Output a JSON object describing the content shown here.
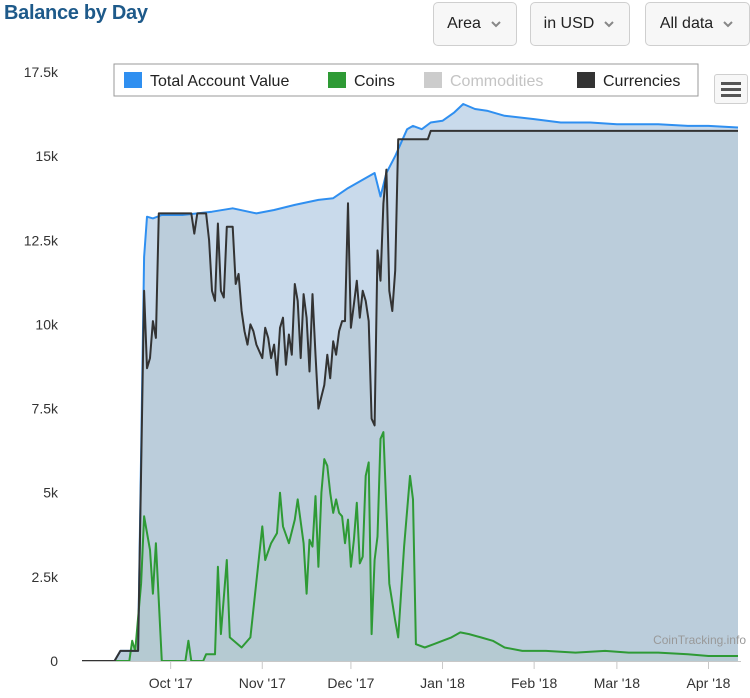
{
  "title": "Balance by Day",
  "controls": {
    "chart_type": "Area",
    "currency": "in USD",
    "range": "All data"
  },
  "credit": "CoinTracking.info",
  "colors": {
    "total": "#2f8ff0",
    "total_fill": "#c9daeb",
    "coins": "#2e9a35",
    "coins_fill": "#a9c8b8",
    "commodities": "#c8c8c8",
    "currencies": "#333333",
    "currencies_fill": "#b5c8d6"
  },
  "chart_data": {
    "type": "area",
    "title": "Balance by Day",
    "xlabel": "",
    "ylabel": "",
    "x_ticks": [
      "Oct '17",
      "Nov '17",
      "Dec '17",
      "Jan '18",
      "Feb '18",
      "Mar '18",
      "Apr '18"
    ],
    "y_ticks": [
      "0",
      "2.5k",
      "5k",
      "7.5k",
      "10k",
      "12.5k",
      "15k",
      "17.5k"
    ],
    "ylim": [
      0,
      17500
    ],
    "xlim": [
      "2017-09-01",
      "2018-04-12"
    ],
    "grid": false,
    "legend_position": "top",
    "series": [
      {
        "name": "Total Account Value",
        "visible": true,
        "points": [
          [
            "2017-09-01",
            0
          ],
          [
            "2017-09-12",
            0
          ],
          [
            "2017-09-14",
            300
          ],
          [
            "2017-09-20",
            300
          ],
          [
            "2017-09-22",
            12000
          ],
          [
            "2017-09-23",
            13200
          ],
          [
            "2017-09-25",
            13150
          ],
          [
            "2017-09-28",
            13250
          ],
          [
            "2017-10-05",
            13250
          ],
          [
            "2017-10-15",
            13350
          ],
          [
            "2017-10-22",
            13450
          ],
          [
            "2017-10-30",
            13300
          ],
          [
            "2017-11-05",
            13400
          ],
          [
            "2017-11-12",
            13550
          ],
          [
            "2017-11-20",
            13700
          ],
          [
            "2017-11-25",
            13750
          ],
          [
            "2017-11-30",
            14050
          ],
          [
            "2017-12-05",
            14300
          ],
          [
            "2017-12-09",
            14500
          ],
          [
            "2017-12-11",
            13800
          ],
          [
            "2017-12-13",
            14500
          ],
          [
            "2017-12-16",
            15000
          ],
          [
            "2017-12-20",
            15800
          ],
          [
            "2017-12-22",
            15900
          ],
          [
            "2017-12-25",
            15800
          ],
          [
            "2017-12-28",
            16000
          ],
          [
            "2018-01-01",
            16050
          ],
          [
            "2018-01-05",
            16300
          ],
          [
            "2018-01-08",
            16550
          ],
          [
            "2018-01-12",
            16400
          ],
          [
            "2018-01-16",
            16350
          ],
          [
            "2018-01-22",
            16200
          ],
          [
            "2018-02-01",
            16100
          ],
          [
            "2018-02-10",
            16000
          ],
          [
            "2018-02-20",
            16000
          ],
          [
            "2018-03-01",
            15950
          ],
          [
            "2018-03-15",
            15950
          ],
          [
            "2018-03-25",
            15900
          ],
          [
            "2018-04-01",
            15900
          ],
          [
            "2018-04-11",
            15850
          ]
        ]
      },
      {
        "name": "Coins",
        "visible": true,
        "points": [
          [
            "2017-09-01",
            0
          ],
          [
            "2017-09-17",
            0
          ],
          [
            "2017-09-18",
            600
          ],
          [
            "2017-09-19",
            300
          ],
          [
            "2017-09-21",
            2300
          ],
          [
            "2017-09-22",
            4300
          ],
          [
            "2017-09-24",
            3300
          ],
          [
            "2017-09-25",
            2000
          ],
          [
            "2017-09-26",
            3500
          ],
          [
            "2017-09-28",
            0
          ],
          [
            "2017-10-06",
            0
          ],
          [
            "2017-10-07",
            600
          ],
          [
            "2017-10-08",
            0
          ],
          [
            "2017-10-12",
            0
          ],
          [
            "2017-10-13",
            200
          ],
          [
            "2017-10-16",
            200
          ],
          [
            "2017-10-17",
            2800
          ],
          [
            "2017-10-18",
            800
          ],
          [
            "2017-10-20",
            3000
          ],
          [
            "2017-10-21",
            700
          ],
          [
            "2017-10-25",
            400
          ],
          [
            "2017-10-28",
            700
          ],
          [
            "2017-11-01",
            4000
          ],
          [
            "2017-11-02",
            3000
          ],
          [
            "2017-11-04",
            3500
          ],
          [
            "2017-11-06",
            3800
          ],
          [
            "2017-11-07",
            5000
          ],
          [
            "2017-11-08",
            4000
          ],
          [
            "2017-11-10",
            3500
          ],
          [
            "2017-11-12",
            4200
          ],
          [
            "2017-11-13",
            4800
          ],
          [
            "2017-11-15",
            3500
          ],
          [
            "2017-11-16",
            2000
          ],
          [
            "2017-11-17",
            3600
          ],
          [
            "2017-11-18",
            3400
          ],
          [
            "2017-11-19",
            4900
          ],
          [
            "2017-11-20",
            2800
          ],
          [
            "2017-11-21",
            5000
          ],
          [
            "2017-11-22",
            6000
          ],
          [
            "2017-11-23",
            5800
          ],
          [
            "2017-11-24",
            5000
          ],
          [
            "2017-11-25",
            4400
          ],
          [
            "2017-11-26",
            4800
          ],
          [
            "2017-11-27",
            4400
          ],
          [
            "2017-11-28",
            4300
          ],
          [
            "2017-11-29",
            3500
          ],
          [
            "2017-11-30",
            4200
          ],
          [
            "2017-12-01",
            2800
          ],
          [
            "2017-12-02",
            3600
          ],
          [
            "2017-12-03",
            4700
          ],
          [
            "2017-12-04",
            2900
          ],
          [
            "2017-12-05",
            3100
          ],
          [
            "2017-12-06",
            5500
          ],
          [
            "2017-12-07",
            5900
          ],
          [
            "2017-12-08",
            800
          ],
          [
            "2017-12-09",
            3000
          ],
          [
            "2017-12-10",
            3700
          ],
          [
            "2017-12-11",
            6600
          ],
          [
            "2017-12-12",
            6800
          ],
          [
            "2017-12-14",
            2300
          ],
          [
            "2017-12-16",
            1200
          ],
          [
            "2017-12-17",
            700
          ],
          [
            "2017-12-19",
            3400
          ],
          [
            "2017-12-21",
            5500
          ],
          [
            "2017-12-22",
            4800
          ],
          [
            "2017-12-23",
            500
          ],
          [
            "2017-12-26",
            400
          ],
          [
            "2017-12-29",
            500
          ],
          [
            "2018-01-01",
            600
          ],
          [
            "2018-01-04",
            700
          ],
          [
            "2018-01-07",
            850
          ],
          [
            "2018-01-10",
            800
          ],
          [
            "2018-01-14",
            700
          ],
          [
            "2018-01-18",
            600
          ],
          [
            "2018-01-22",
            400
          ],
          [
            "2018-01-28",
            300
          ],
          [
            "2018-02-05",
            300
          ],
          [
            "2018-02-15",
            250
          ],
          [
            "2018-02-25",
            300
          ],
          [
            "2018-03-05",
            250
          ],
          [
            "2018-03-15",
            250
          ],
          [
            "2018-03-25",
            200
          ],
          [
            "2018-04-01",
            150
          ],
          [
            "2018-04-11",
            150
          ]
        ]
      },
      {
        "name": "Commodities",
        "visible": false,
        "points": []
      },
      {
        "name": "Currencies",
        "visible": true,
        "points": [
          [
            "2017-09-01",
            0
          ],
          [
            "2017-09-12",
            0
          ],
          [
            "2017-09-14",
            300
          ],
          [
            "2017-09-20",
            300
          ],
          [
            "2017-09-22",
            11000
          ],
          [
            "2017-09-23",
            8700
          ],
          [
            "2017-09-24",
            9000
          ],
          [
            "2017-09-25",
            10100
          ],
          [
            "2017-09-26",
            9600
          ],
          [
            "2017-09-27",
            13300
          ],
          [
            "2017-10-08",
            13300
          ],
          [
            "2017-10-09",
            12700
          ],
          [
            "2017-10-10",
            13300
          ],
          [
            "2017-10-13",
            13300
          ],
          [
            "2017-10-14",
            12500
          ],
          [
            "2017-10-15",
            11000
          ],
          [
            "2017-10-16",
            10700
          ],
          [
            "2017-10-17",
            13000
          ],
          [
            "2017-10-18",
            11000
          ],
          [
            "2017-10-19",
            10800
          ],
          [
            "2017-10-20",
            12900
          ],
          [
            "2017-10-22",
            12900
          ],
          [
            "2017-10-23",
            11200
          ],
          [
            "2017-10-24",
            11500
          ],
          [
            "2017-10-25",
            10400
          ],
          [
            "2017-10-26",
            9800
          ],
          [
            "2017-10-27",
            9400
          ],
          [
            "2017-10-28",
            10000
          ],
          [
            "2017-10-29",
            9800
          ],
          [
            "2017-10-30",
            9400
          ],
          [
            "2017-11-01",
            9000
          ],
          [
            "2017-11-02",
            9900
          ],
          [
            "2017-11-03",
            9600
          ],
          [
            "2017-11-04",
            9000
          ],
          [
            "2017-11-05",
            9400
          ],
          [
            "2017-11-06",
            8500
          ],
          [
            "2017-11-07",
            9900
          ],
          [
            "2017-11-08",
            10200
          ],
          [
            "2017-11-09",
            8800
          ],
          [
            "2017-11-10",
            9700
          ],
          [
            "2017-11-11",
            9100
          ],
          [
            "2017-11-12",
            11200
          ],
          [
            "2017-11-13",
            10700
          ],
          [
            "2017-11-14",
            9000
          ],
          [
            "2017-11-15",
            10900
          ],
          [
            "2017-11-16",
            10200
          ],
          [
            "2017-11-17",
            8600
          ],
          [
            "2017-11-18",
            10900
          ],
          [
            "2017-11-19",
            9100
          ],
          [
            "2017-11-20",
            7500
          ],
          [
            "2017-11-22",
            8200
          ],
          [
            "2017-11-23",
            9100
          ],
          [
            "2017-11-24",
            8400
          ],
          [
            "2017-11-25",
            9500
          ],
          [
            "2017-11-26",
            9100
          ],
          [
            "2017-11-27",
            9800
          ],
          [
            "2017-11-28",
            10100
          ],
          [
            "2017-11-29",
            10100
          ],
          [
            "2017-11-30",
            13600
          ],
          [
            "2017-12-01",
            9900
          ],
          [
            "2017-12-02",
            10600
          ],
          [
            "2017-12-03",
            11300
          ],
          [
            "2017-12-04",
            10200
          ],
          [
            "2017-12-05",
            11000
          ],
          [
            "2017-12-06",
            10700
          ],
          [
            "2017-12-07",
            10100
          ],
          [
            "2017-12-08",
            7200
          ],
          [
            "2017-12-09",
            7000
          ],
          [
            "2017-12-10",
            12200
          ],
          [
            "2017-12-11",
            11300
          ],
          [
            "2017-12-12",
            13600
          ],
          [
            "2017-12-13",
            14600
          ],
          [
            "2017-12-14",
            11000
          ],
          [
            "2017-12-15",
            10400
          ],
          [
            "2017-12-16",
            11600
          ],
          [
            "2017-12-17",
            15500
          ],
          [
            "2017-12-27",
            15500
          ],
          [
            "2017-12-28",
            15750
          ],
          [
            "2018-04-11",
            15750
          ]
        ]
      }
    ]
  }
}
